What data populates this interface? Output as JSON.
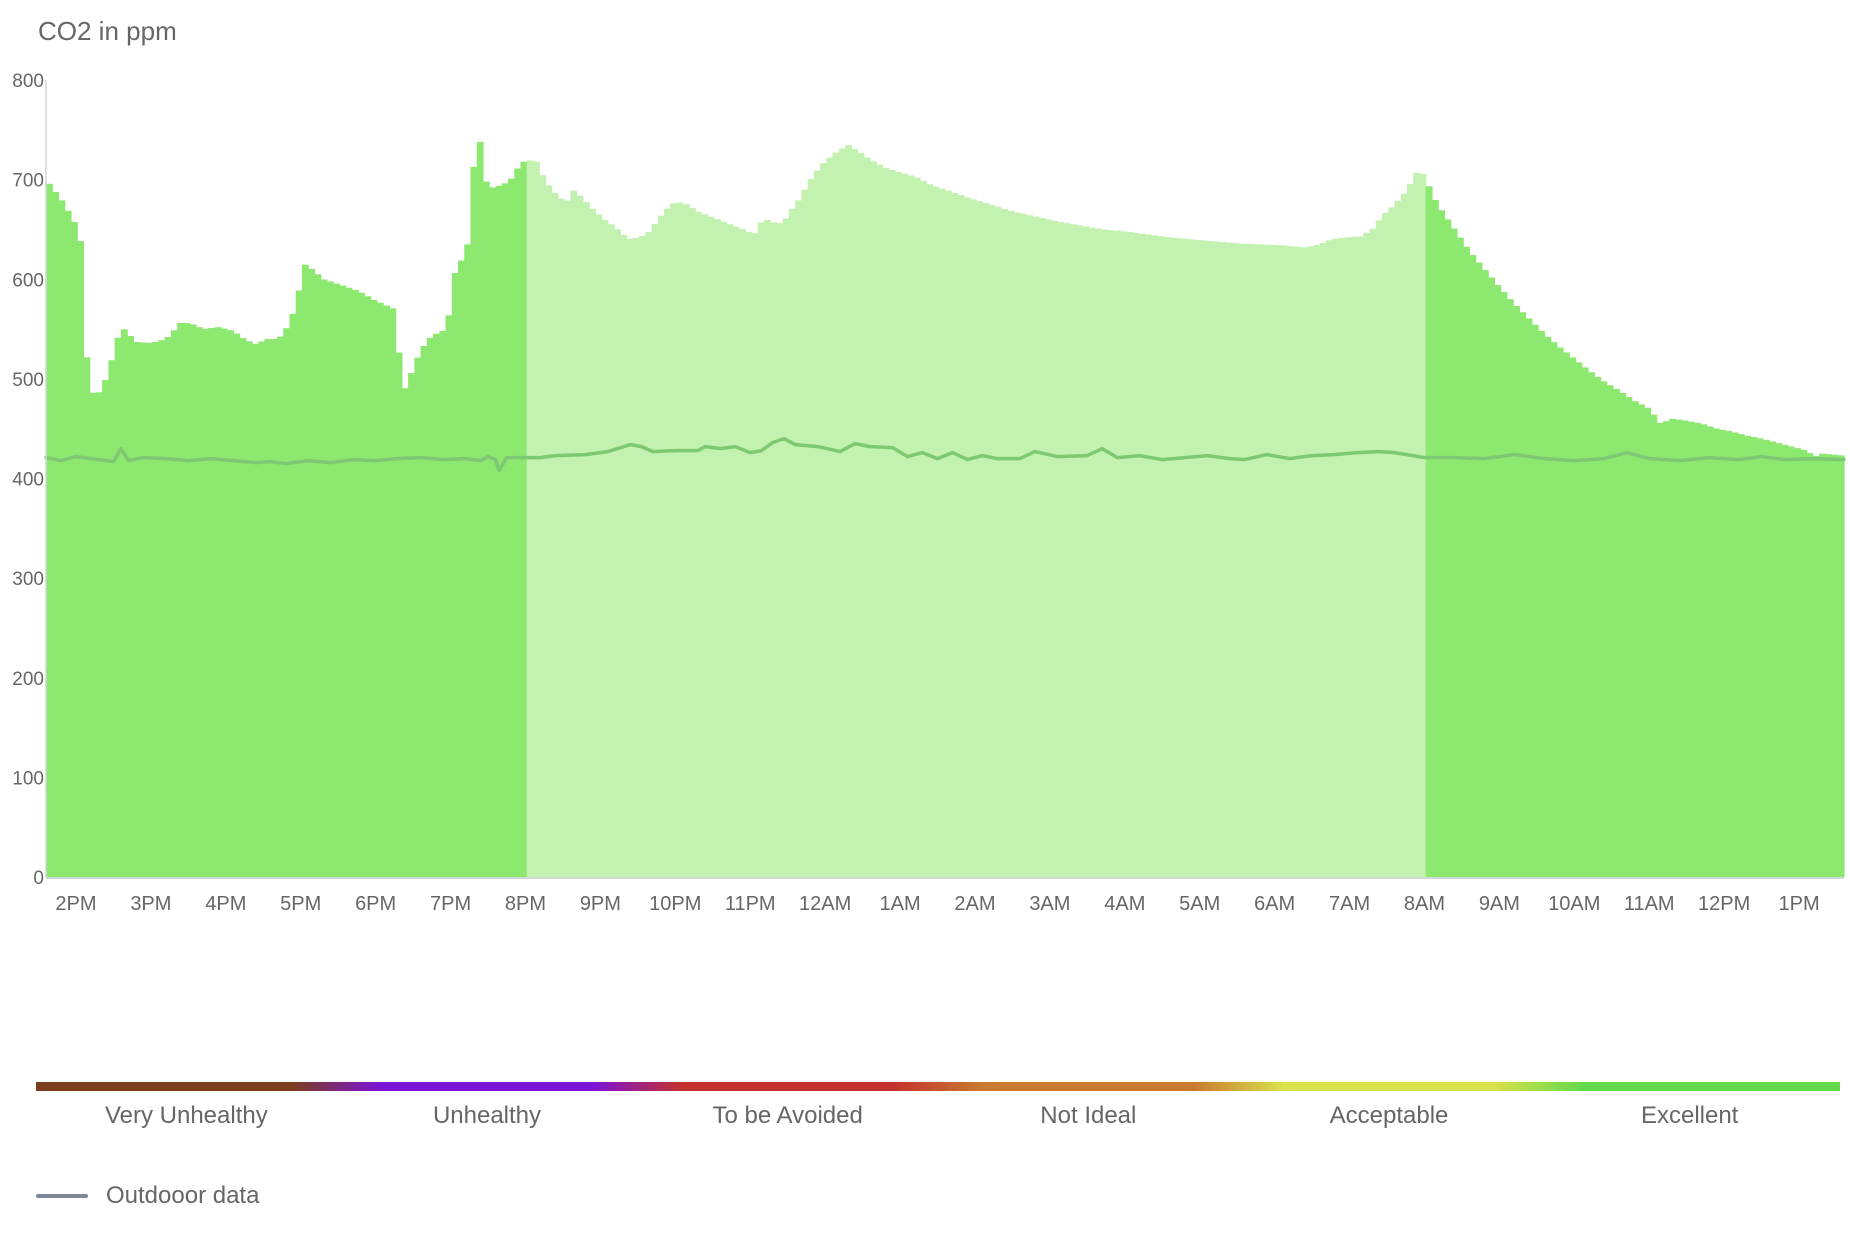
{
  "chart_data": {
    "type": "bar",
    "title": "CO2 in ppm",
    "ylim": [
      0,
      800
    ],
    "yticks": [
      0,
      100,
      200,
      300,
      400,
      500,
      600,
      700,
      800
    ],
    "x_tick_labels": [
      "2PM",
      "3PM",
      "4PM",
      "5PM",
      "6PM",
      "7PM",
      "8PM",
      "9PM",
      "10PM",
      "11PM",
      "12AM",
      "1AM",
      "2AM",
      "3AM",
      "4AM",
      "5AM",
      "6AM",
      "7AM",
      "8AM",
      "9AM",
      "10AM",
      "11AM",
      "12PM",
      "1PM"
    ],
    "x_range_hours": [
      0,
      24
    ],
    "first_tick_hour": 0.4,
    "night_shading_hours": [
      6.4,
      18.4
    ],
    "co2_series": [
      [
        0.0,
        700
      ],
      [
        0.1,
        690
      ],
      [
        0.25,
        675
      ],
      [
        0.35,
        660
      ],
      [
        0.45,
        650
      ],
      [
        0.55,
        510
      ],
      [
        0.65,
        478
      ],
      [
        0.8,
        500
      ],
      [
        0.9,
        525
      ],
      [
        1.0,
        553
      ],
      [
        1.1,
        545
      ],
      [
        1.2,
        537
      ],
      [
        1.4,
        536
      ],
      [
        1.6,
        540
      ],
      [
        1.7,
        548
      ],
      [
        1.8,
        557
      ],
      [
        1.95,
        555
      ],
      [
        2.1,
        550
      ],
      [
        2.3,
        552
      ],
      [
        2.5,
        548
      ],
      [
        2.6,
        542
      ],
      [
        2.7,
        538
      ],
      [
        2.8,
        535
      ],
      [
        2.95,
        540
      ],
      [
        3.1,
        540
      ],
      [
        3.25,
        555
      ],
      [
        3.35,
        580
      ],
      [
        3.45,
        615
      ],
      [
        3.55,
        610
      ],
      [
        3.7,
        600
      ],
      [
        3.9,
        595
      ],
      [
        4.1,
        590
      ],
      [
        4.25,
        585
      ],
      [
        4.35,
        580
      ],
      [
        4.5,
        575
      ],
      [
        4.65,
        570
      ],
      [
        4.7,
        530
      ],
      [
        4.8,
        487
      ],
      [
        4.9,
        512
      ],
      [
        5.0,
        528
      ],
      [
        5.1,
        540
      ],
      [
        5.2,
        545
      ],
      [
        5.35,
        550
      ],
      [
        5.45,
        605
      ],
      [
        5.55,
        620
      ],
      [
        5.65,
        640
      ],
      [
        5.75,
        765
      ],
      [
        5.85,
        700
      ],
      [
        5.95,
        692
      ],
      [
        6.1,
        695
      ],
      [
        6.2,
        700
      ],
      [
        6.3,
        712
      ],
      [
        6.4,
        720
      ],
      [
        6.55,
        718
      ],
      [
        6.65,
        700
      ],
      [
        6.75,
        690
      ],
      [
        6.85,
        682
      ],
      [
        6.95,
        678
      ],
      [
        7.05,
        690
      ],
      [
        7.15,
        682
      ],
      [
        7.3,
        670
      ],
      [
        7.45,
        660
      ],
      [
        7.6,
        652
      ],
      [
        7.7,
        645
      ],
      [
        7.8,
        640
      ],
      [
        7.95,
        643
      ],
      [
        8.05,
        648
      ],
      [
        8.15,
        658
      ],
      [
        8.25,
        668
      ],
      [
        8.4,
        678
      ],
      [
        8.55,
        675
      ],
      [
        8.7,
        668
      ],
      [
        8.9,
        662
      ],
      [
        9.1,
        656
      ],
      [
        9.3,
        650
      ],
      [
        9.45,
        645
      ],
      [
        9.55,
        658
      ],
      [
        9.65,
        660
      ],
      [
        9.75,
        655
      ],
      [
        9.85,
        658
      ],
      [
        9.95,
        670
      ],
      [
        10.05,
        680
      ],
      [
        10.2,
        700
      ],
      [
        10.35,
        715
      ],
      [
        10.5,
        725
      ],
      [
        10.7,
        735
      ],
      [
        10.85,
        728
      ],
      [
        11.0,
        720
      ],
      [
        11.2,
        712
      ],
      [
        11.4,
        707
      ],
      [
        11.6,
        703
      ],
      [
        11.8,
        695
      ],
      [
        12.0,
        690
      ],
      [
        12.3,
        682
      ],
      [
        12.6,
        675
      ],
      [
        12.9,
        668
      ],
      [
        13.2,
        663
      ],
      [
        13.5,
        658
      ],
      [
        13.8,
        654
      ],
      [
        14.1,
        650
      ],
      [
        14.4,
        648
      ],
      [
        14.7,
        645
      ],
      [
        15.0,
        642
      ],
      [
        15.3,
        640
      ],
      [
        15.6,
        638
      ],
      [
        15.9,
        636
      ],
      [
        16.2,
        635
      ],
      [
        16.5,
        634
      ],
      [
        16.8,
        632
      ],
      [
        17.0,
        635
      ],
      [
        17.15,
        640
      ],
      [
        17.35,
        642
      ],
      [
        17.55,
        643
      ],
      [
        17.7,
        650
      ],
      [
        17.85,
        665
      ],
      [
        18.0,
        675
      ],
      [
        18.15,
        688
      ],
      [
        18.3,
        708
      ],
      [
        18.4,
        705
      ],
      [
        18.5,
        685
      ],
      [
        18.6,
        672
      ],
      [
        18.8,
        650
      ],
      [
        19.0,
        628
      ],
      [
        19.2,
        610
      ],
      [
        19.4,
        592
      ],
      [
        19.6,
        575
      ],
      [
        19.8,
        560
      ],
      [
        20.0,
        545
      ],
      [
        20.2,
        532
      ],
      [
        20.4,
        520
      ],
      [
        20.6,
        508
      ],
      [
        20.8,
        497
      ],
      [
        21.0,
        488
      ],
      [
        21.2,
        478
      ],
      [
        21.4,
        470
      ],
      [
        21.55,
        455
      ],
      [
        21.7,
        460
      ],
      [
        21.9,
        458
      ],
      [
        22.1,
        455
      ],
      [
        22.3,
        450
      ],
      [
        22.5,
        447
      ],
      [
        22.7,
        443
      ],
      [
        22.9,
        440
      ],
      [
        23.1,
        436
      ],
      [
        23.3,
        432
      ],
      [
        23.5,
        428
      ],
      [
        23.6,
        422
      ],
      [
        23.7,
        425
      ],
      [
        24.0,
        423
      ]
    ],
    "outdoor_series": [
      [
        0.0,
        421
      ],
      [
        0.2,
        418
      ],
      [
        0.4,
        422
      ],
      [
        0.7,
        419
      ],
      [
        0.9,
        417
      ],
      [
        1.0,
        430
      ],
      [
        1.1,
        418
      ],
      [
        1.3,
        421
      ],
      [
        1.6,
        420
      ],
      [
        1.9,
        418
      ],
      [
        2.2,
        420
      ],
      [
        2.5,
        418
      ],
      [
        2.8,
        416
      ],
      [
        3.0,
        417
      ],
      [
        3.2,
        415
      ],
      [
        3.5,
        418
      ],
      [
        3.8,
        416
      ],
      [
        4.1,
        419
      ],
      [
        4.4,
        418
      ],
      [
        4.7,
        420
      ],
      [
        5.0,
        421
      ],
      [
        5.3,
        419
      ],
      [
        5.6,
        420
      ],
      [
        5.8,
        418
      ],
      [
        5.9,
        422
      ],
      [
        6.0,
        419
      ],
      [
        6.05,
        408
      ],
      [
        6.15,
        421
      ],
      [
        6.4,
        421
      ],
      [
        6.6,
        421
      ],
      [
        6.8,
        423
      ],
      [
        7.2,
        424
      ],
      [
        7.5,
        427
      ],
      [
        7.8,
        434
      ],
      [
        7.95,
        432
      ],
      [
        8.1,
        427
      ],
      [
        8.4,
        428
      ],
      [
        8.7,
        428
      ],
      [
        8.8,
        432
      ],
      [
        9.0,
        430
      ],
      [
        9.2,
        432
      ],
      [
        9.4,
        426
      ],
      [
        9.55,
        428
      ],
      [
        9.7,
        436
      ],
      [
        9.85,
        440
      ],
      [
        10.0,
        434
      ],
      [
        10.3,
        432
      ],
      [
        10.6,
        427
      ],
      [
        10.8,
        435
      ],
      [
        11.0,
        432
      ],
      [
        11.3,
        431
      ],
      [
        11.5,
        422
      ],
      [
        11.7,
        426
      ],
      [
        11.9,
        420
      ],
      [
        12.1,
        426
      ],
      [
        12.3,
        419
      ],
      [
        12.5,
        423
      ],
      [
        12.7,
        420
      ],
      [
        13.0,
        420
      ],
      [
        13.2,
        427
      ],
      [
        13.5,
        422
      ],
      [
        13.9,
        423
      ],
      [
        14.1,
        430
      ],
      [
        14.3,
        421
      ],
      [
        14.6,
        423
      ],
      [
        14.9,
        419
      ],
      [
        15.2,
        421
      ],
      [
        15.5,
        423
      ],
      [
        15.8,
        420
      ],
      [
        16.0,
        419
      ],
      [
        16.3,
        424
      ],
      [
        16.6,
        420
      ],
      [
        16.9,
        423
      ],
      [
        17.2,
        424
      ],
      [
        17.5,
        426
      ],
      [
        17.8,
        427
      ],
      [
        18.0,
        426
      ],
      [
        18.4,
        421
      ],
      [
        18.8,
        421
      ],
      [
        19.2,
        420
      ],
      [
        19.6,
        424
      ],
      [
        20.0,
        420
      ],
      [
        20.4,
        418
      ],
      [
        20.8,
        420
      ],
      [
        21.1,
        426
      ],
      [
        21.4,
        420
      ],
      [
        21.8,
        418
      ],
      [
        22.2,
        421
      ],
      [
        22.6,
        419
      ],
      [
        22.9,
        422
      ],
      [
        23.2,
        419
      ],
      [
        23.6,
        420
      ],
      [
        24.0,
        419
      ]
    ],
    "colors": {
      "day_bars": "#8ce86e",
      "night_bars": "#c3f2b0",
      "outdoor_line": "#7ec874",
      "axis_line": "#cfd8d2",
      "tick_text": "#666666"
    },
    "quality_scale": {
      "labels": [
        "Very Unhealthy",
        "Unhealthy",
        "To be Avoided",
        "Not Ideal",
        "Acceptable",
        "Excellent"
      ],
      "colors": [
        "#7b3f1c",
        "#7c13d8",
        "#c3322d",
        "#c97a2f",
        "#d9e14c",
        "#62d94a"
      ]
    },
    "legend": {
      "label": "Outdooor data",
      "color": "#7d8797"
    }
  }
}
